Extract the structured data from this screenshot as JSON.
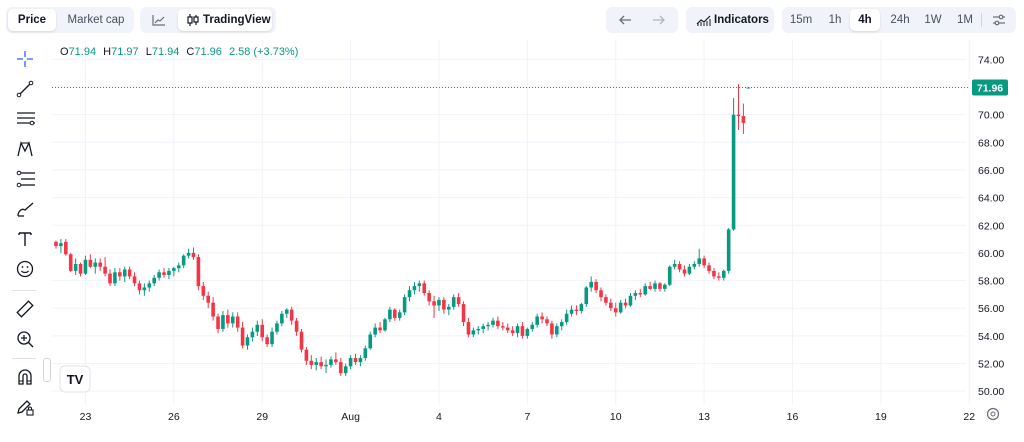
{
  "header": {
    "tabs": [
      {
        "label": "Price",
        "active": true
      },
      {
        "label": "Market cap",
        "active": false
      }
    ],
    "tradingview_label": "TradingView",
    "indicators_label": "Indicators",
    "intervals": [
      {
        "label": "15m",
        "active": false
      },
      {
        "label": "1h",
        "active": false
      },
      {
        "label": "4h",
        "active": true
      },
      {
        "label": "24h",
        "active": false
      },
      {
        "label": "1W",
        "active": false
      },
      {
        "label": "1M",
        "active": false
      }
    ]
  },
  "legend": {
    "o_label": "O",
    "o_value": "71.94",
    "h_label": "H",
    "h_value": "71.97",
    "l_label": "L",
    "l_value": "71.94",
    "c_label": "C",
    "c_value": "71.96",
    "change": "2.58 (+3.73%)"
  },
  "colors": {
    "up": "#089981",
    "down": "#f23645",
    "grid": "#f0f3fa",
    "last_price_line": "#089981",
    "axis_text": "#131722"
  },
  "sidebar_icons": [
    "crosshair-icon",
    "trend-line-icon",
    "horizontal-lines-icon",
    "pattern-icon",
    "projection-icon",
    "brush-icon",
    "text-icon",
    "emoji-icon",
    "ruler-icon",
    "zoom-in-icon",
    "magnet-icon",
    "lock-pencil-icon"
  ],
  "chart_data": {
    "type": "candlestick",
    "interval": "4h",
    "last_price": "71.96",
    "last_price_value": 71.96,
    "y_ticks": [
      "50.00",
      "52.00",
      "54.00",
      "56.00",
      "58.00",
      "60.00",
      "62.00",
      "64.00",
      "66.00",
      "68.00",
      "70.00",
      "72.00",
      "74.00"
    ],
    "y_tick_values": [
      50,
      52,
      54,
      56,
      58,
      60,
      62,
      64,
      66,
      68,
      70,
      72,
      74
    ],
    "ylim": [
      49,
      75.4
    ],
    "x_ticks": [
      {
        "label": "23",
        "index": 6
      },
      {
        "label": "26",
        "index": 24
      },
      {
        "label": "29",
        "index": 42
      },
      {
        "label": "Aug",
        "index": 60
      },
      {
        "label": "4",
        "index": 78
      },
      {
        "label": "7",
        "index": 96
      },
      {
        "label": "10",
        "index": 114
      },
      {
        "label": "13",
        "index": 132
      },
      {
        "label": "16",
        "index": 150
      },
      {
        "label": "19",
        "index": 168
      },
      {
        "label": "22",
        "index": 186
      }
    ],
    "candles": [
      [
        60.8,
        60.9,
        60.3,
        60.5
      ],
      [
        60.5,
        61.0,
        60.0,
        60.7
      ],
      [
        60.8,
        61.0,
        59.8,
        59.9
      ],
      [
        59.9,
        60.0,
        58.6,
        58.7
      ],
      [
        58.7,
        59.6,
        58.4,
        59.2
      ],
      [
        59.2,
        59.3,
        58.3,
        58.5
      ],
      [
        58.5,
        59.8,
        58.4,
        59.5
      ],
      [
        59.5,
        59.9,
        58.9,
        59.0
      ],
      [
        59.0,
        59.6,
        58.5,
        59.3
      ],
      [
        59.3,
        59.6,
        58.7,
        59.0
      ],
      [
        59.0,
        59.7,
        58.3,
        58.5
      ],
      [
        58.5,
        58.8,
        57.6,
        57.8
      ],
      [
        57.8,
        58.9,
        57.6,
        58.6
      ],
      [
        58.6,
        58.9,
        58.0,
        58.3
      ],
      [
        58.3,
        59.0,
        57.9,
        58.8
      ],
      [
        58.8,
        59.0,
        58.1,
        58.3
      ],
      [
        58.3,
        58.6,
        57.6,
        57.8
      ],
      [
        57.8,
        58.0,
        57.0,
        57.3
      ],
      [
        57.3,
        57.8,
        56.9,
        57.5
      ],
      [
        57.5,
        58.0,
        57.2,
        57.8
      ],
      [
        57.8,
        58.4,
        57.6,
        58.2
      ],
      [
        58.2,
        58.8,
        58.0,
        58.6
      ],
      [
        58.6,
        58.9,
        58.2,
        58.4
      ],
      [
        58.4,
        58.9,
        58.1,
        58.7
      ],
      [
        58.7,
        59.0,
        58.3,
        58.9
      ],
      [
        58.9,
        59.3,
        58.6,
        59.1
      ],
      [
        59.1,
        59.9,
        58.9,
        59.8
      ],
      [
        59.8,
        60.3,
        59.6,
        60.0
      ],
      [
        60.0,
        60.4,
        59.5,
        59.7
      ],
      [
        59.7,
        59.9,
        57.3,
        57.6
      ],
      [
        57.6,
        57.9,
        56.6,
        56.9
      ],
      [
        56.9,
        57.2,
        56.0,
        56.4
      ],
      [
        56.4,
        56.8,
        55.1,
        55.4
      ],
      [
        55.4,
        55.6,
        54.2,
        54.5
      ],
      [
        54.5,
        55.8,
        54.3,
        55.5
      ],
      [
        55.5,
        55.9,
        54.6,
        54.9
      ],
      [
        54.9,
        55.7,
        54.6,
        55.4
      ],
      [
        55.4,
        55.7,
        54.3,
        54.6
      ],
      [
        54.6,
        55.0,
        53.1,
        53.3
      ],
      [
        53.3,
        54.1,
        53.0,
        53.9
      ],
      [
        53.9,
        54.6,
        53.6,
        54.3
      ],
      [
        54.3,
        55.1,
        54.0,
        54.8
      ],
      [
        54.8,
        55.2,
        53.6,
        53.9
      ],
      [
        53.9,
        54.1,
        53.2,
        53.4
      ],
      [
        53.4,
        54.6,
        53.2,
        54.3
      ],
      [
        54.3,
        55.1,
        54.1,
        54.9
      ],
      [
        54.9,
        55.8,
        54.7,
        55.6
      ],
      [
        55.6,
        56.0,
        55.3,
        55.9
      ],
      [
        55.9,
        56.1,
        54.8,
        55.1
      ],
      [
        55.1,
        55.3,
        54.0,
        54.3
      ],
      [
        54.3,
        54.5,
        52.8,
        53.0
      ],
      [
        53.0,
        53.2,
        51.9,
        52.2
      ],
      [
        52.2,
        52.6,
        51.6,
        51.9
      ],
      [
        51.9,
        52.4,
        51.5,
        52.1
      ],
      [
        52.1,
        52.5,
        51.6,
        51.8
      ],
      [
        51.8,
        52.3,
        51.3,
        51.9
      ],
      [
        51.9,
        52.5,
        51.7,
        52.3
      ],
      [
        52.3,
        52.8,
        51.9,
        52.1
      ],
      [
        52.1,
        52.4,
        51.1,
        51.3
      ],
      [
        51.3,
        52.0,
        51.1,
        51.8
      ],
      [
        51.8,
        52.6,
        51.6,
        52.4
      ],
      [
        52.4,
        52.7,
        51.9,
        52.1
      ],
      [
        52.1,
        52.6,
        51.8,
        52.4
      ],
      [
        52.4,
        53.3,
        52.2,
        53.1
      ],
      [
        53.1,
        54.3,
        53.0,
        54.1
      ],
      [
        54.1,
        54.9,
        53.9,
        54.6
      ],
      [
        54.6,
        55.0,
        54.2,
        54.4
      ],
      [
        54.4,
        55.3,
        54.3,
        55.2
      ],
      [
        55.2,
        56.1,
        55.0,
        55.9
      ],
      [
        55.9,
        56.0,
        55.1,
        55.3
      ],
      [
        55.3,
        55.9,
        55.1,
        55.7
      ],
      [
        55.7,
        57.0,
        55.5,
        56.8
      ],
      [
        56.8,
        57.6,
        56.5,
        57.3
      ],
      [
        57.3,
        57.9,
        57.0,
        57.6
      ],
      [
        57.6,
        58.0,
        57.2,
        57.8
      ],
      [
        57.8,
        58.0,
        56.9,
        57.1
      ],
      [
        57.1,
        57.3,
        56.2,
        56.5
      ],
      [
        56.5,
        56.9,
        55.3,
        56.2
      ],
      [
        56.2,
        56.8,
        55.8,
        56.6
      ],
      [
        56.6,
        56.8,
        55.6,
        55.9
      ],
      [
        55.9,
        56.3,
        55.5,
        56.1
      ],
      [
        56.1,
        57.0,
        55.9,
        56.8
      ],
      [
        56.8,
        57.1,
        56.1,
        56.3
      ],
      [
        56.3,
        56.5,
        54.7,
        55.0
      ],
      [
        55.0,
        55.3,
        53.9,
        54.1
      ],
      [
        54.1,
        54.6,
        53.9,
        54.4
      ],
      [
        54.4,
        54.7,
        54.1,
        54.5
      ],
      [
        54.5,
        54.9,
        54.2,
        54.7
      ],
      [
        54.7,
        55.0,
        54.4,
        54.8
      ],
      [
        54.8,
        55.3,
        54.6,
        55.1
      ],
      [
        55.1,
        55.4,
        54.5,
        54.7
      ],
      [
        54.7,
        55.0,
        54.4,
        54.6
      ],
      [
        54.6,
        54.9,
        54.2,
        54.4
      ],
      [
        54.4,
        54.7,
        54.0,
        54.2
      ],
      [
        54.2,
        54.9,
        53.9,
        54.7
      ],
      [
        54.7,
        55.0,
        53.8,
        54.0
      ],
      [
        54.0,
        54.6,
        53.8,
        54.5
      ],
      [
        54.5,
        55.0,
        54.3,
        54.8
      ],
      [
        54.8,
        55.6,
        54.6,
        55.4
      ],
      [
        55.4,
        55.7,
        54.9,
        55.2
      ],
      [
        55.2,
        55.4,
        54.7,
        54.9
      ],
      [
        54.9,
        55.1,
        53.8,
        54.1
      ],
      [
        54.1,
        54.9,
        53.9,
        54.7
      ],
      [
        54.7,
        55.2,
        54.4,
        55.0
      ],
      [
        55.0,
        55.9,
        54.8,
        55.6
      ],
      [
        55.6,
        56.2,
        55.4,
        55.9
      ],
      [
        55.9,
        56.2,
        55.5,
        55.8
      ],
      [
        55.8,
        56.4,
        55.6,
        56.3
      ],
      [
        56.3,
        57.6,
        56.1,
        57.5
      ],
      [
        57.5,
        58.3,
        57.2,
        57.9
      ],
      [
        57.9,
        58.1,
        57.1,
        57.3
      ],
      [
        57.3,
        57.5,
        56.5,
        56.8
      ],
      [
        56.8,
        57.0,
        56.2,
        56.4
      ],
      [
        56.4,
        56.7,
        55.8,
        56.0
      ],
      [
        56.0,
        56.4,
        55.4,
        55.7
      ],
      [
        55.7,
        56.6,
        55.6,
        56.4
      ],
      [
        56.4,
        56.7,
        56.0,
        56.2
      ],
      [
        56.2,
        57.1,
        56.1,
        56.9
      ],
      [
        56.9,
        57.3,
        56.6,
        57.1
      ],
      [
        57.1,
        57.4,
        56.8,
        57.0
      ],
      [
        57.0,
        57.8,
        56.9,
        57.6
      ],
      [
        57.6,
        57.9,
        57.3,
        57.4
      ],
      [
        57.4,
        58.0,
        57.2,
        57.8
      ],
      [
        57.8,
        57.9,
        57.2,
        57.4
      ],
      [
        57.4,
        57.8,
        57.2,
        57.7
      ],
      [
        57.7,
        59.1,
        57.6,
        59.0
      ],
      [
        59.0,
        59.5,
        58.8,
        59.2
      ],
      [
        59.2,
        59.4,
        58.6,
        58.8
      ],
      [
        58.8,
        59.1,
        58.3,
        58.5
      ],
      [
        58.5,
        59.2,
        58.4,
        59.0
      ],
      [
        59.0,
        59.4,
        58.8,
        59.2
      ],
      [
        59.2,
        60.3,
        59.0,
        59.6
      ],
      [
        59.6,
        59.8,
        58.9,
        59.1
      ],
      [
        59.1,
        59.3,
        58.5,
        58.7
      ],
      [
        58.7,
        58.9,
        58.1,
        58.3
      ],
      [
        58.3,
        58.6,
        58.0,
        58.2
      ],
      [
        58.2,
        58.8,
        58.0,
        58.7
      ],
      [
        58.7,
        61.8,
        58.5,
        61.7
      ],
      [
        61.7,
        71.2,
        61.6,
        70.0
      ],
      [
        70.0,
        72.2,
        68.9,
        69.9
      ],
      [
        69.9,
        70.8,
        68.6,
        69.4
      ],
      [
        71.94,
        71.97,
        71.94,
        71.96
      ]
    ]
  }
}
